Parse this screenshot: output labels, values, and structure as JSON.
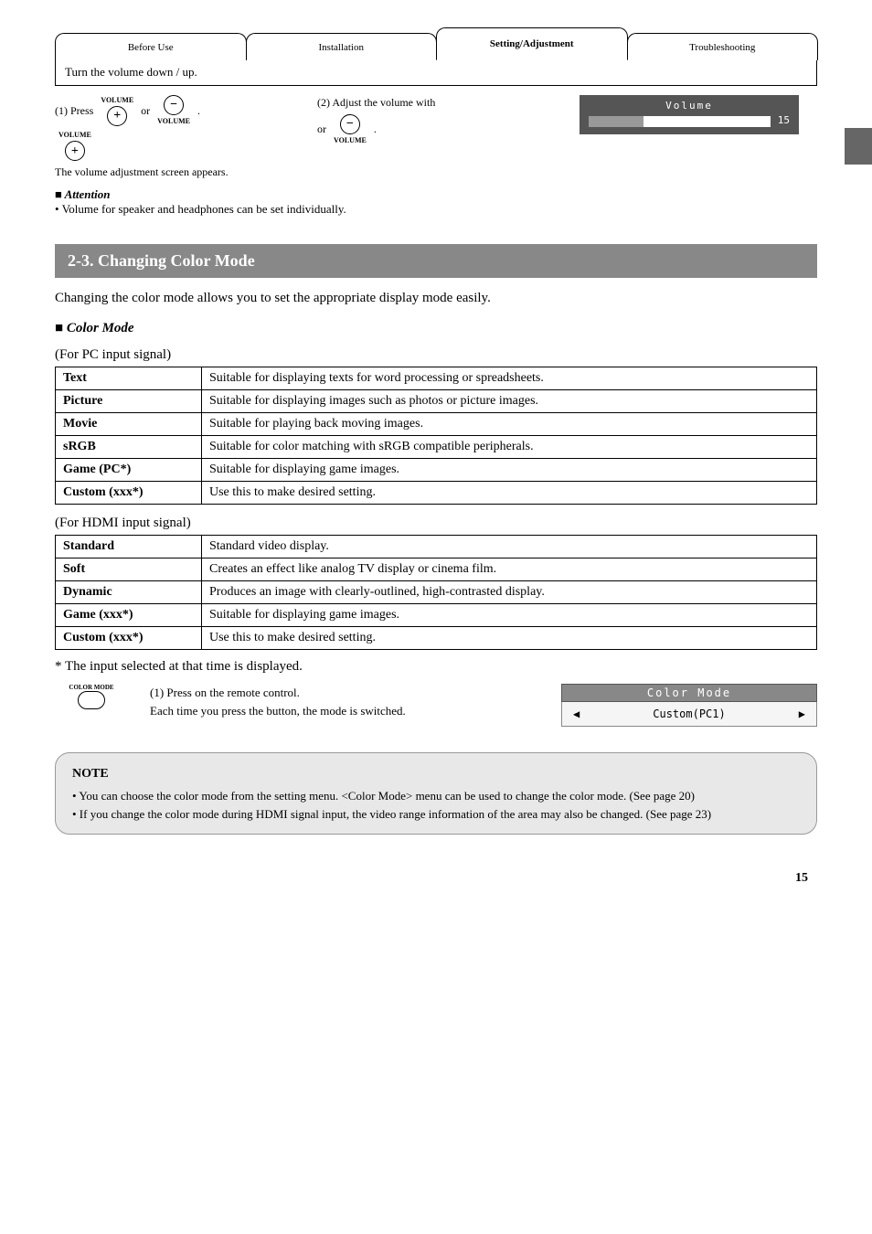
{
  "tabs": [
    "Before Use",
    "Installation",
    "Setting/Adjustment",
    "Troubleshooting"
  ],
  "active_tab_index": 2,
  "stepbar_text": "Turn the volume down / up.",
  "volume": {
    "col1": {
      "line1": "(1) Press",
      "line2": "or",
      "line3": "The volume adjustment screen appears.",
      "plus_label": "VOLUME",
      "minus_label": "VOLUME"
    },
    "col2": {
      "line1": "(2) Adjust the volume with",
      "line2": "or",
      "line3": ".",
      "plus_label": "VOLUME",
      "minus_label": "VOLUME"
    },
    "osd_title": "Volume",
    "osd_value": "15",
    "osd_fill_pct": 30
  },
  "note1": {
    "lead": "Attention",
    "body": "• Volume for speaker and headphones can be set individually."
  },
  "banner": "2-3. Changing Color Mode",
  "intro_para": "Changing the color mode allows you to set the appropriate display mode easily.",
  "subhead": "Color Mode",
  "pc_caption": "(For PC input signal)",
  "pc_table": [
    [
      "Text",
      "Suitable for displaying texts for word processing or spreadsheets."
    ],
    [
      "Picture",
      "Suitable for displaying images such as photos or picture images."
    ],
    [
      "Movie",
      "Suitable for playing back moving images."
    ],
    [
      "sRGB",
      "Suitable for color matching with sRGB compatible peripherals."
    ],
    [
      "Game (PC*)",
      "Suitable for displaying game images."
    ],
    [
      "Custom (xxx*)",
      "Use this to make desired setting."
    ]
  ],
  "hdmi_caption": "(For HDMI input signal)",
  "hdmi_table": [
    [
      "Standard",
      "Standard video display."
    ],
    [
      "Soft",
      "Creates an effect like analog TV display or cinema film."
    ],
    [
      "Dynamic",
      "Produces an image with clearly-outlined, high-contrasted display."
    ],
    [
      "Game (xxx*)",
      "Suitable for displaying game images."
    ],
    [
      "Custom (xxx*)",
      "Use this to make desired setting."
    ]
  ],
  "footnote": "* The input selected at that time is displayed.",
  "colorop": {
    "btn_label": "COLOR MODE",
    "line1": "(1) Press",
    "line2": "on the remote control.",
    "line3": "Each time you press the button, the mode is switched.",
    "osd_header": "Color Mode",
    "osd_value": "Custom(PC1)"
  },
  "note2": {
    "title": "NOTE",
    "l1": "• You can choose the color mode from the setting menu. <Color Mode> menu can be used to change the color mode. (See page 20)",
    "l2": "• If you change the color mode during HDMI signal input, the video range information of the area may also be changed. (See page 23)"
  },
  "page_number": "15"
}
